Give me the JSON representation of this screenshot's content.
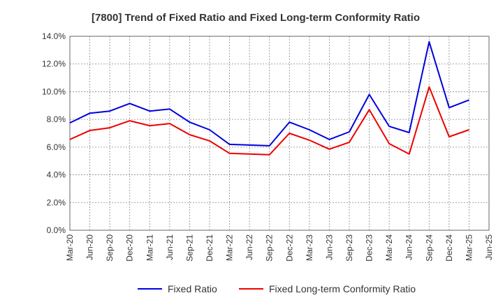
{
  "chart_data": {
    "type": "line",
    "title": "[7800]  Trend of Fixed Ratio and Fixed Long-term Conformity Ratio",
    "xlabel": "",
    "ylabel": "",
    "categories": [
      "Mar-20",
      "Jun-20",
      "Sep-20",
      "Dec-20",
      "Mar-21",
      "Jun-21",
      "Sep-21",
      "Dec-21",
      "Mar-22",
      "Jun-22",
      "Sep-22",
      "Dec-22",
      "Mar-23",
      "Jun-23",
      "Sep-23",
      "Dec-23",
      "Mar-24",
      "Jun-24",
      "Sep-24",
      "Dec-24",
      "Mar-25",
      "Jun-25"
    ],
    "y_ticks": [
      "0.0%",
      "2.0%",
      "4.0%",
      "6.0%",
      "8.0%",
      "10.0%",
      "12.0%",
      "14.0%"
    ],
    "ylim": [
      0,
      14
    ],
    "grid": true,
    "legend_position": "bottom",
    "series": [
      {
        "name": "Fixed Ratio",
        "color": "#0000dd",
        "values": [
          7.75,
          8.45,
          8.6,
          9.15,
          8.6,
          8.75,
          7.8,
          7.25,
          6.2,
          6.15,
          6.1,
          7.8,
          7.25,
          6.55,
          7.1,
          9.8,
          7.5,
          7.05,
          13.6,
          8.85,
          9.4,
          null
        ]
      },
      {
        "name": "Fixed Long-term Conformity Ratio",
        "color": "#ee0000",
        "values": [
          6.55,
          7.2,
          7.4,
          7.9,
          7.55,
          7.7,
          6.9,
          6.45,
          5.55,
          5.5,
          5.45,
          7.0,
          6.5,
          5.85,
          6.35,
          8.7,
          6.25,
          5.5,
          10.35,
          6.75,
          7.25,
          null
        ]
      }
    ]
  }
}
